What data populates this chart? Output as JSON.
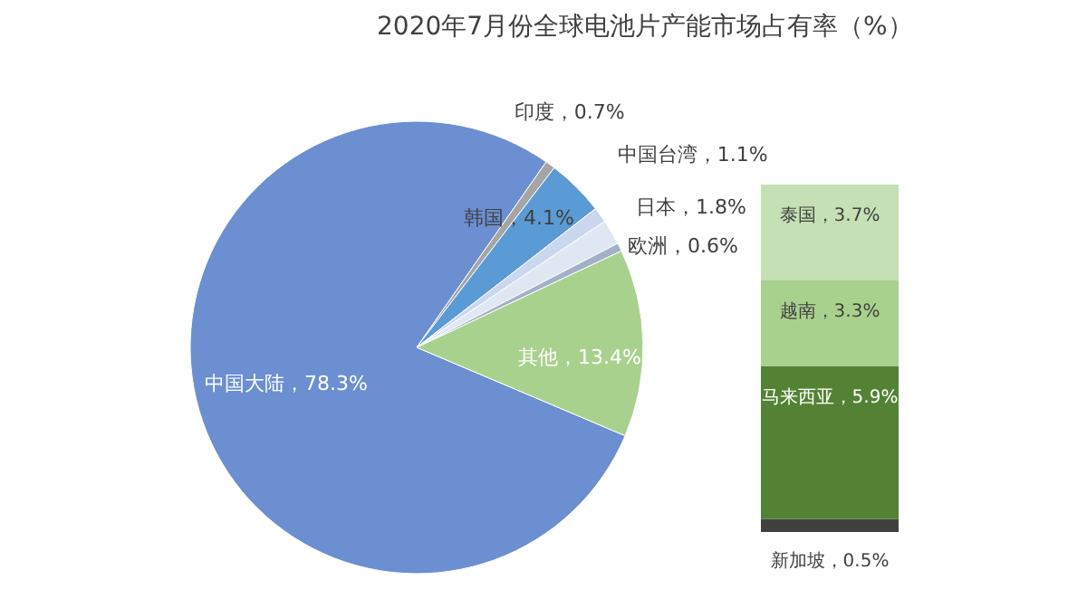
{
  "chart_data": [
    {
      "type": "pie",
      "title": "2020年7月份全球电池片产能市场占有率（%）",
      "categories": [
        "中国大陆",
        "印度",
        "韩国",
        "中国台湾",
        "日本",
        "欧洲",
        "其他"
      ],
      "values": [
        78.3,
        0.7,
        4.1,
        1.1,
        1.8,
        0.6,
        13.4
      ],
      "colors": [
        "#6b8fd0",
        "#a5a5a5",
        "#5b9bd5",
        "#c9d8ef",
        "#dfe7f3",
        "#a3b1c6",
        "#a9d18e"
      ],
      "value_labels": [
        "78.3%",
        "0.7%",
        "4.1%",
        "1.1%",
        "1.8%",
        "0.6%",
        "13.4%"
      ]
    },
    {
      "type": "bar",
      "stacked": true,
      "categories": [
        null
      ],
      "tick_labels": false,
      "series": [
        {
          "color": "#404040",
          "values": [
            0.5
          ],
          "value_labels": [
            "新加坡，0.5%"
          ]
        },
        {
          "color": "#548235",
          "values": [
            5.9
          ],
          "value_labels": [
            "马来西亚，5.9%"
          ]
        },
        {
          "color": "#a9d18e",
          "values": [
            3.3
          ],
          "value_labels": [
            "越南，3.3%"
          ]
        },
        {
          "color": "#c5e0b4",
          "values": [
            3.7
          ],
          "value_labels": [
            "泰国，3.7%"
          ]
        }
      ]
    }
  ]
}
